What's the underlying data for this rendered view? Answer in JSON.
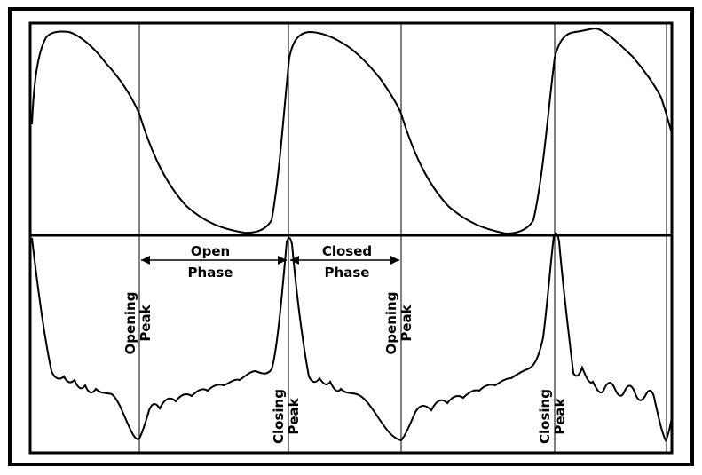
{
  "figure": {
    "colors": {
      "line": "#000000",
      "background": "#ffffff"
    },
    "phase_labels": [
      {
        "line1": "Open",
        "line2": "Phase"
      },
      {
        "line1": "Closed",
        "line2": "Phase"
      }
    ],
    "peak_labels": [
      {
        "line1": "Opening",
        "line2": "Peak"
      },
      {
        "line1": "Closing",
        "line2": "Peak"
      },
      {
        "line1": "Opening",
        "line2": "Peak"
      },
      {
        "line1": "Closing",
        "line2": "Peak"
      }
    ]
  }
}
